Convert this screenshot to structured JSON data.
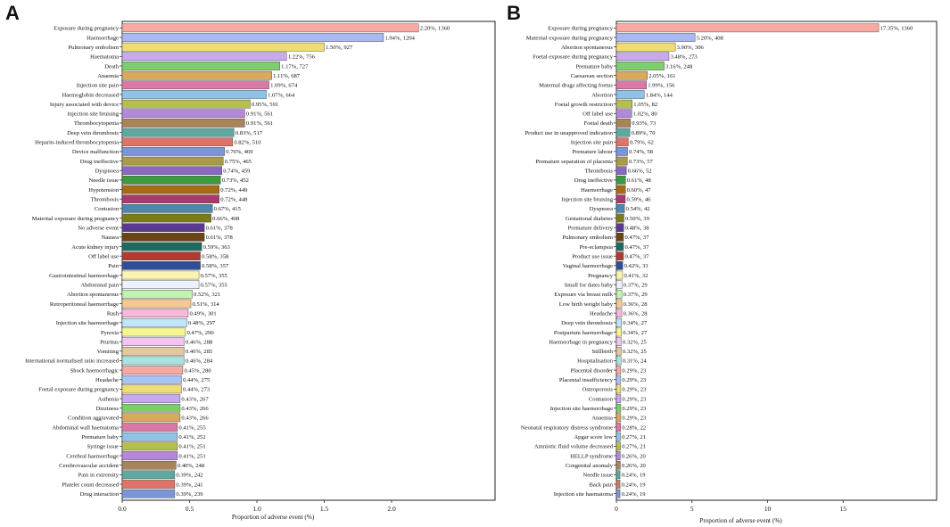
{
  "panels": [
    {
      "letter": "A",
      "chart_data": {
        "type": "bar",
        "orientation": "horizontal",
        "title": "",
        "xlabel": "Proportion of adverse event (%)",
        "xlim": [
          0,
          2.8
        ],
        "xticks": [
          "0.0",
          "0.5",
          "1.0",
          "1.5",
          "2.0"
        ],
        "xtick_values": [
          0,
          0.5,
          1.0,
          1.5,
          2.0
        ],
        "bars": [
          {
            "label": "Exposure during pregnancy",
            "value": 2.2,
            "text": "2.20%, 1360",
            "color": "#f9a9a3"
          },
          {
            "label": "Haemorrhage",
            "value": 1.94,
            "text": "1.94%, 1204",
            "color": "#a9b9f2"
          },
          {
            "label": "Pulmonary embolism",
            "value": 1.5,
            "text": "1.50%, 927",
            "color": "#efdd73"
          },
          {
            "label": "Haematoma",
            "value": 1.22,
            "text": "1.22%, 756",
            "color": "#c7a9f0"
          },
          {
            "label": "Death",
            "value": 1.17,
            "text": "1.17%, 727",
            "color": "#7ccf6c"
          },
          {
            "label": "Anaemia",
            "value": 1.11,
            "text": "1.11%, 687",
            "color": "#d9a95e"
          },
          {
            "label": "Injection site pain",
            "value": 1.09,
            "text": "1.09%, 674",
            "color": "#dc78a8"
          },
          {
            "label": "Haemoglobin decreased",
            "value": 1.07,
            "text": "1.07%, 664",
            "color": "#8ec3e7"
          },
          {
            "label": "Injury associated with device",
            "value": 0.95,
            "text": "0.95%, 591",
            "color": "#b5bf4f"
          },
          {
            "label": "Injection site bruising",
            "value": 0.91,
            "text": "0.91%, 561",
            "color": "#b487d9"
          },
          {
            "label": "Thrombocytopenia",
            "value": 0.91,
            "text": "0.91%, 561",
            "color": "#a9845a"
          },
          {
            "label": "Deep vein thrombosis",
            "value": 0.83,
            "text": "0.83%, 517",
            "color": "#5fa89e"
          },
          {
            "label": "Heparin-induced thrombocytopenia",
            "value": 0.82,
            "text": "0.82%, 510",
            "color": "#e07367"
          },
          {
            "label": "Device malfunction",
            "value": 0.76,
            "text": "0.76%, 469",
            "color": "#7b96d8"
          },
          {
            "label": "Drug ineffective",
            "value": 0.75,
            "text": "0.75%, 465",
            "color": "#a99a48"
          },
          {
            "label": "Dyspnoea",
            "value": 0.74,
            "text": "0.74%, 459",
            "color": "#8a68c2"
          },
          {
            "label": "Needle issue",
            "value": 0.73,
            "text": "0.73%, 452",
            "color": "#3e9a3e"
          },
          {
            "label": "Hypotension",
            "value": 0.72,
            "text": "0.72%, 449",
            "color": "#a86a12"
          },
          {
            "label": "Thrombosis",
            "value": 0.72,
            "text": "0.72%, 448",
            "color": "#a83a6e"
          },
          {
            "label": "Contusion",
            "value": 0.67,
            "text": "0.67%, 415",
            "color": "#4e86ad"
          },
          {
            "label": "Maternal exposure during pregnancy",
            "value": 0.66,
            "text": "0.66%, 408",
            "color": "#7c7a1e"
          },
          {
            "label": "No adverse event",
            "value": 0.61,
            "text": "0.61%, 378",
            "color": "#5a3a8e"
          },
          {
            "label": "Nausea",
            "value": 0.61,
            "text": "0.61%, 378",
            "color": "#6a4414"
          },
          {
            "label": "Acute kidney injury",
            "value": 0.59,
            "text": "0.59%, 363",
            "color": "#1f6a5e"
          },
          {
            "label": "Off label use",
            "value": 0.58,
            "text": "0.58%, 358",
            "color": "#b23a2e"
          },
          {
            "label": "Pain",
            "value": 0.58,
            "text": "0.58%, 357",
            "color": "#2e4e9a"
          },
          {
            "label": "Gastrointestinal haemorrhage",
            "value": 0.57,
            "text": "0.57%, 355",
            "color": "#fbf3b0"
          },
          {
            "label": "Abdominal pain",
            "value": 0.57,
            "text": "0.57%, 355",
            "color": "#eef0fb"
          },
          {
            "label": "Abortion spontaneous",
            "value": 0.52,
            "text": "0.52%, 321",
            "color": "#c3f3b0"
          },
          {
            "label": "Retroperitoneal haemorrhage",
            "value": 0.51,
            "text": "0.51%, 314",
            "color": "#f6c892"
          },
          {
            "label": "Rash",
            "value": 0.49,
            "text": "0.49%, 301",
            "color": "#f7b8dc"
          },
          {
            "label": "Injection site haemorrhage",
            "value": 0.48,
            "text": "0.48%, 297",
            "color": "#bfe6fb"
          },
          {
            "label": "Pyrexia",
            "value": 0.47,
            "text": "0.47%, 290",
            "color": "#f4f792"
          },
          {
            "label": "Pruritus",
            "value": 0.46,
            "text": "0.46%, 288",
            "color": "#f3c3f1"
          },
          {
            "label": "Vomiting",
            "value": 0.46,
            "text": "0.46%, 285",
            "color": "#e4c89e"
          },
          {
            "label": "International normalised ratio increased",
            "value": 0.46,
            "text": "0.46%, 284",
            "color": "#a7e2dc"
          },
          {
            "label": "Shock haemorrhagic",
            "value": 0.45,
            "text": "0.45%, 280",
            "color": "#f7a9a3"
          },
          {
            "label": "Headache",
            "value": 0.44,
            "text": "0.44%, 275",
            "color": "#a9c3f2"
          },
          {
            "label": "Foetal exposure during pregnancy",
            "value": 0.44,
            "text": "0.44%, 273",
            "color": "#efdd73"
          },
          {
            "label": "Asthenia",
            "value": 0.43,
            "text": "0.43%, 267",
            "color": "#c7a9f0"
          },
          {
            "label": "Dizziness",
            "value": 0.43,
            "text": "0.43%, 266",
            "color": "#7ccf6c"
          },
          {
            "label": "Condition aggravated",
            "value": 0.43,
            "text": "0.43%, 266",
            "color": "#d9a95e"
          },
          {
            "label": "Abdominal wall haematoma",
            "value": 0.41,
            "text": "0.41%, 255",
            "color": "#dc78a8"
          },
          {
            "label": "Premature baby",
            "value": 0.41,
            "text": "0.41%, 252",
            "color": "#8ec3e7"
          },
          {
            "label": "Syringe issue",
            "value": 0.41,
            "text": "0.41%, 251",
            "color": "#b5bf4f"
          },
          {
            "label": "Cerebral haemorrhage",
            "value": 0.41,
            "text": "0.41%, 251",
            "color": "#b487d9"
          },
          {
            "label": "Cerebrovascular accident",
            "value": 0.4,
            "text": "0.40%, 248",
            "color": "#a9845a"
          },
          {
            "label": "Pain in extremity",
            "value": 0.39,
            "text": "0.39%, 242",
            "color": "#5fa89e"
          },
          {
            "label": "Platelet count decreased",
            "value": 0.39,
            "text": "0.39%, 241",
            "color": "#e07367"
          },
          {
            "label": "Drug interaction",
            "value": 0.39,
            "text": "0.39%, 239",
            "color": "#7b96d8"
          }
        ]
      }
    },
    {
      "letter": "B",
      "chart_data": {
        "type": "bar",
        "orientation": "horizontal",
        "title": "",
        "xlabel": "Proportion of adverse event (%)",
        "xlim": [
          0,
          22
        ],
        "xticks": [
          "0",
          "5",
          "10",
          "15"
        ],
        "xtick_values": [
          0,
          5,
          10,
          15
        ],
        "bars": [
          {
            "label": "Exposure during pregnancy",
            "value": 17.35,
            "text": "17.35%, 1360",
            "color": "#f9a9a3"
          },
          {
            "label": "Maternal exposure during pregnancy",
            "value": 5.2,
            "text": "5.20%, 408",
            "color": "#a9b9f2"
          },
          {
            "label": "Abortion spontaneous",
            "value": 3.9,
            "text": "3.90%, 306",
            "color": "#efdd73"
          },
          {
            "label": "Foetal exposure during pregnancy",
            "value": 3.48,
            "text": "3.48%, 273",
            "color": "#c7a9f0"
          },
          {
            "label": "Premature baby",
            "value": 3.16,
            "text": "3.16%, 248",
            "color": "#7ccf6c"
          },
          {
            "label": "Caesarean section",
            "value": 2.05,
            "text": "2.05%, 161",
            "color": "#d9a95e"
          },
          {
            "label": "Maternal drugs affecting foetus",
            "value": 1.99,
            "text": "1.99%, 156",
            "color": "#dc78a8"
          },
          {
            "label": "Abortion",
            "value": 1.84,
            "text": "1.84%, 144",
            "color": "#8ec3e7"
          },
          {
            "label": "Foetal growth restriction",
            "value": 1.05,
            "text": "1.05%, 82",
            "color": "#b5bf4f"
          },
          {
            "label": "Off label use",
            "value": 1.02,
            "text": "1.02%, 80",
            "color": "#b487d9"
          },
          {
            "label": "Foetal death",
            "value": 0.93,
            "text": "0.93%, 73",
            "color": "#a9845a"
          },
          {
            "label": "Product use in unapproved indication",
            "value": 0.89,
            "text": "0.89%, 70",
            "color": "#5fa89e"
          },
          {
            "label": "Injection site pain",
            "value": 0.79,
            "text": "0.79%, 62",
            "color": "#e07367"
          },
          {
            "label": "Premature labour",
            "value": 0.74,
            "text": "0.74%, 58",
            "color": "#7b96d8"
          },
          {
            "label": "Premature separation of placenta",
            "value": 0.73,
            "text": "0.73%, 57",
            "color": "#a99a48"
          },
          {
            "label": "Thrombosis",
            "value": 0.66,
            "text": "0.66%, 52",
            "color": "#8a68c2"
          },
          {
            "label": "Drug ineffective",
            "value": 0.61,
            "text": "0.61%, 48",
            "color": "#3e9a3e"
          },
          {
            "label": "Haemorrhage",
            "value": 0.6,
            "text": "0.60%, 47",
            "color": "#a86a12"
          },
          {
            "label": "Injection site bruising",
            "value": 0.59,
            "text": "0.59%, 46",
            "color": "#a83a6e"
          },
          {
            "label": "Dyspnoea",
            "value": 0.54,
            "text": "0.54%, 42",
            "color": "#4e86ad"
          },
          {
            "label": "Gestational diabetes",
            "value": 0.5,
            "text": "0.50%, 39",
            "color": "#7c7a1e"
          },
          {
            "label": "Premature delivery",
            "value": 0.48,
            "text": "0.48%, 38",
            "color": "#5a3a8e"
          },
          {
            "label": "Pulmonary embolism",
            "value": 0.47,
            "text": "0.47%, 37",
            "color": "#6a4414"
          },
          {
            "label": "Pre-eclampsia",
            "value": 0.47,
            "text": "0.47%, 37",
            "color": "#1f6a5e"
          },
          {
            "label": "Product use issue",
            "value": 0.47,
            "text": "0.47%, 37",
            "color": "#b23a2e"
          },
          {
            "label": "Vaginal haemorrhage",
            "value": 0.42,
            "text": "0.42%, 33",
            "color": "#2e4e9a"
          },
          {
            "label": "Pregnancy",
            "value": 0.41,
            "text": "0.41%, 32",
            "color": "#fbf3b0"
          },
          {
            "label": "Small for dates baby",
            "value": 0.37,
            "text": "0.37%, 29",
            "color": "#eef0fb"
          },
          {
            "label": "Exposure via breast milk",
            "value": 0.37,
            "text": "0.37%, 29",
            "color": "#c3f3b0"
          },
          {
            "label": "Low birth weight baby",
            "value": 0.36,
            "text": "0.36%, 28",
            "color": "#f6c892"
          },
          {
            "label": "Headache",
            "value": 0.36,
            "text": "0.36%, 28",
            "color": "#f7b8dc"
          },
          {
            "label": "Deep vein thrombosis",
            "value": 0.34,
            "text": "0.34%, 27",
            "color": "#bfe6fb"
          },
          {
            "label": "Postpartum haemorrhage",
            "value": 0.34,
            "text": "0.34%, 27",
            "color": "#f4f792"
          },
          {
            "label": "Haemorrhage in pregnancy",
            "value": 0.32,
            "text": "0.32%, 25",
            "color": "#f3c3f1"
          },
          {
            "label": "Stillbirth",
            "value": 0.32,
            "text": "0.32%, 25",
            "color": "#e4c89e"
          },
          {
            "label": "Hospitalisation",
            "value": 0.31,
            "text": "0.31%, 24",
            "color": "#a7e2dc"
          },
          {
            "label": "Placental disorder",
            "value": 0.29,
            "text": "0.29%, 23",
            "color": "#f7a9a3"
          },
          {
            "label": "Placental insufficiency",
            "value": 0.29,
            "text": "0.29%, 23",
            "color": "#a9c3f2"
          },
          {
            "label": "Osteoporosis",
            "value": 0.29,
            "text": "0.29%, 23",
            "color": "#efdd73"
          },
          {
            "label": "Contusion",
            "value": 0.29,
            "text": "0.29%, 23",
            "color": "#c7a9f0"
          },
          {
            "label": "Injection site haemorrhage",
            "value": 0.29,
            "text": "0.29%, 23",
            "color": "#7ccf6c"
          },
          {
            "label": "Anaemia",
            "value": 0.29,
            "text": "0.29%, 23",
            "color": "#d9a95e"
          },
          {
            "label": "Neonatal respiratory distress syndrome",
            "value": 0.28,
            "text": "0.28%, 22",
            "color": "#dc78a8"
          },
          {
            "label": "Apgar score low",
            "value": 0.27,
            "text": "0.27%, 21",
            "color": "#8ec3e7"
          },
          {
            "label": "Amniotic fluid volume decreased",
            "value": 0.27,
            "text": "0.27%, 21",
            "color": "#b5bf4f"
          },
          {
            "label": "HELLP syndrome",
            "value": 0.26,
            "text": "0.26%, 20",
            "color": "#b487d9"
          },
          {
            "label": "Congenital anomaly",
            "value": 0.26,
            "text": "0.26%, 20",
            "color": "#a9845a"
          },
          {
            "label": "Needle issue",
            "value": 0.24,
            "text": "0.24%, 19",
            "color": "#5fa89e"
          },
          {
            "label": "Back pain",
            "value": 0.24,
            "text": "0.24%, 19",
            "color": "#e07367"
          },
          {
            "label": "Injection site haematoma",
            "value": 0.24,
            "text": "0.24%, 19",
            "color": "#7b96d8"
          }
        ]
      }
    }
  ]
}
